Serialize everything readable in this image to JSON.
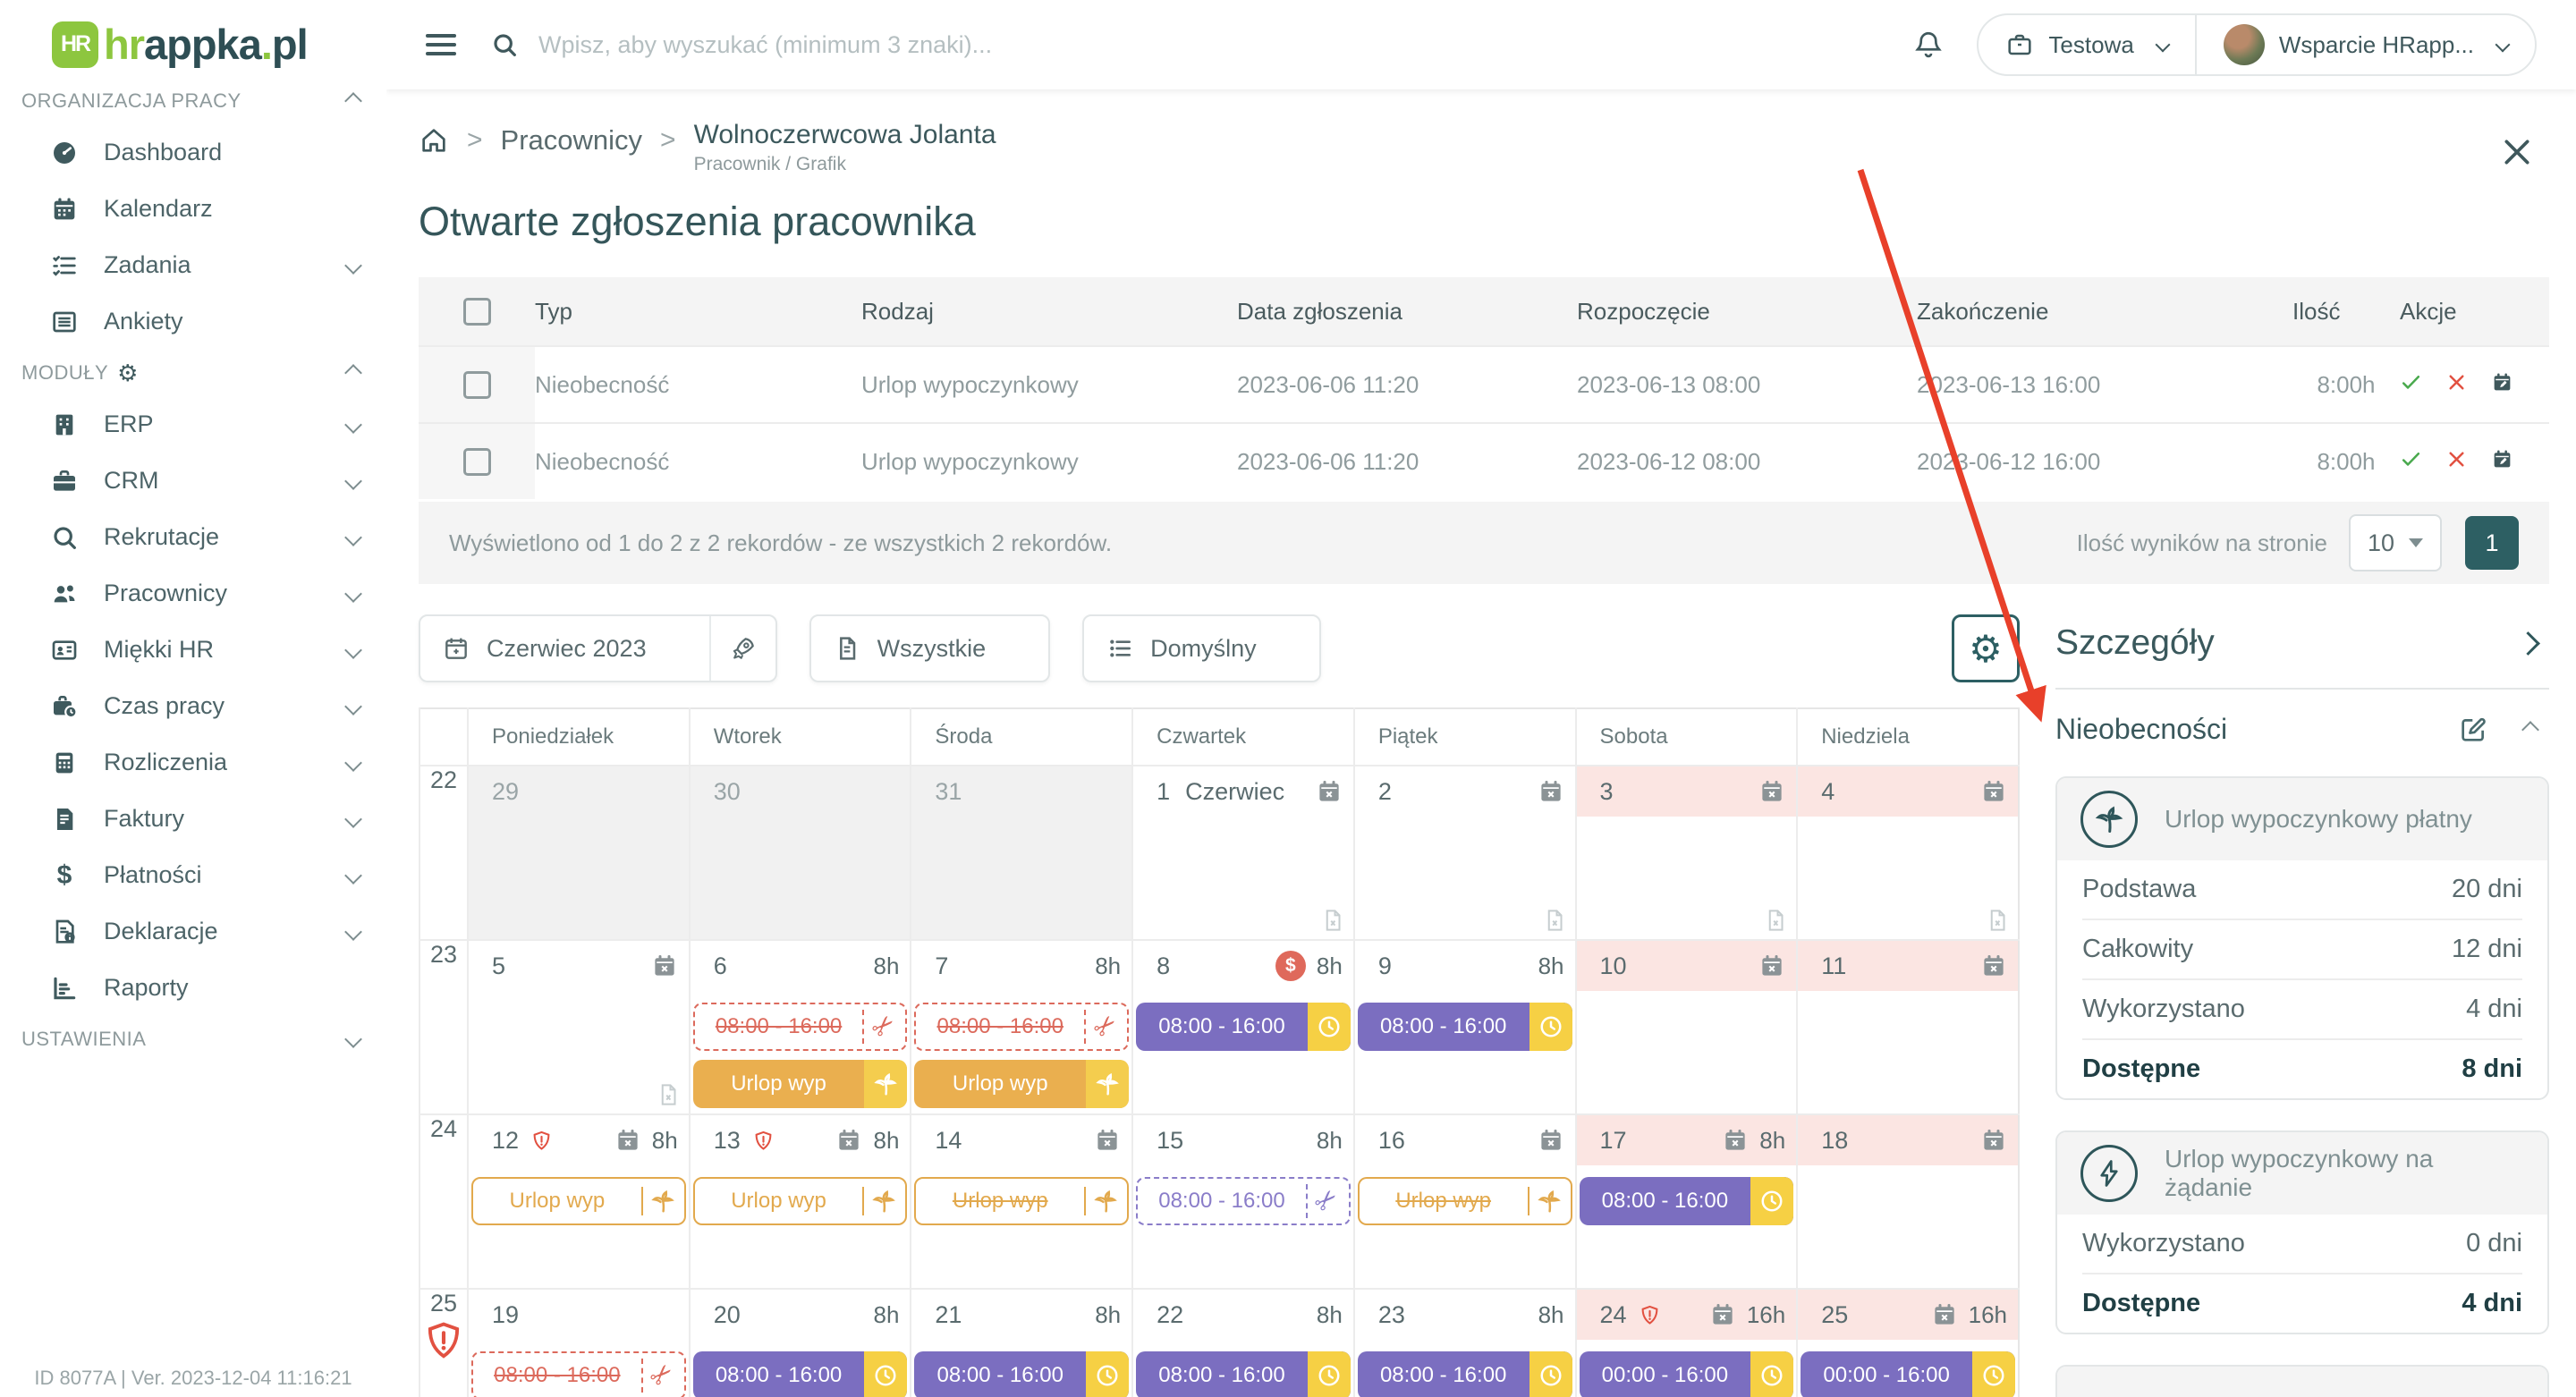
{
  "brand": {
    "badge": "HR",
    "hr": "hr",
    "appka": "appka",
    "dot": ".",
    "pl": "pl"
  },
  "topbar": {
    "search_placeholder": "Wpisz, aby wyszukać (minimum 3 znaki)...",
    "company": "Testowa",
    "user": "Wsparcie HRapp..."
  },
  "sidebar": {
    "sections": [
      {
        "label": "ORGANIZACJA PRACY",
        "chevron": "up",
        "gear": false,
        "items": [
          {
            "icon": "gauge",
            "label": "Dashboard",
            "chevron": false
          },
          {
            "icon": "calendar",
            "label": "Kalendarz",
            "chevron": false
          },
          {
            "icon": "tasks",
            "label": "Zadania",
            "chevron": true
          },
          {
            "icon": "survey",
            "label": "Ankiety",
            "chevron": false
          }
        ]
      },
      {
        "label": "MODUŁY",
        "chevron": "up",
        "gear": true,
        "items": [
          {
            "icon": "building",
            "label": "ERP",
            "chevron": true
          },
          {
            "icon": "briefcase",
            "label": "CRM",
            "chevron": true
          },
          {
            "icon": "search",
            "label": "Rekrutacje",
            "chevron": true
          },
          {
            "icon": "users",
            "label": "Pracownicy",
            "chevron": true
          },
          {
            "icon": "idcard",
            "label": "Miękki HR",
            "chevron": true
          },
          {
            "icon": "briefcase-clock",
            "label": "Czas pracy",
            "chevron": true
          },
          {
            "icon": "calculator",
            "label": "Rozliczenia",
            "chevron": true
          },
          {
            "icon": "invoice",
            "label": "Faktury",
            "chevron": true
          },
          {
            "icon": "dollar",
            "label": "Płatności",
            "chevron": true
          },
          {
            "icon": "file-info",
            "label": "Deklaracje",
            "chevron": true
          },
          {
            "icon": "chart",
            "label": "Raporty",
            "chevron": false
          }
        ]
      },
      {
        "label": "USTAWIENIA",
        "chevron": "down",
        "gear": false,
        "items": []
      }
    ],
    "footer": "ID 8077A | Ver. 2023-12-04 11:16:21"
  },
  "breadcrumb": {
    "section": "Pracownicy",
    "employee": "Wolnoczerwcowa Jolanta",
    "employee_sub": "Pracownik / Grafik"
  },
  "page": {
    "title": "Otwarte zgłoszenia pracownika"
  },
  "table": {
    "headers": [
      "Typ",
      "Rodzaj",
      "Data zgłoszenia",
      "Rozpoczęcie",
      "Zakończenie",
      "Ilość",
      "Akcje"
    ],
    "rows": [
      {
        "typ": "Nieobecność",
        "rodzaj": "Urlop wypoczynkowy",
        "data": "2023-06-06 11:20",
        "start": "2023-06-13 08:00",
        "end": "2023-06-13 16:00",
        "qty": "8:00h",
        "actions": [
          "approve",
          "reject",
          "calendar-edit"
        ]
      },
      {
        "typ": "Nieobecność",
        "rodzaj": "Urlop wypoczynkowy",
        "data": "2023-06-06 11:20",
        "start": "2023-06-12 08:00",
        "end": "2023-06-12 16:00",
        "qty": "8:00h",
        "actions": [
          "approve",
          "reject",
          "calendar-edit"
        ]
      }
    ]
  },
  "pagination": {
    "summary": "Wyświetlono od 1 do 2 z 2 rekordów - ze wszystkich 2 rekordów.",
    "per_page_label": "Ilość wyników na stronie",
    "per_page": "10",
    "page": "1"
  },
  "filters": {
    "month": "Czerwiec 2023",
    "type_filter": "Wszystkie",
    "view": "Domyślny"
  },
  "calendar": {
    "day_names": [
      "Poniedziałek",
      "Wtorek",
      "Środa",
      "Czwartek",
      "Piątek",
      "Sobota",
      "Niedziela"
    ],
    "weeks": [
      {
        "num": "22",
        "shield": false,
        "days": [
          {
            "num": "29",
            "muted": true
          },
          {
            "num": "30",
            "muted": true
          },
          {
            "num": "31",
            "muted": true
          },
          {
            "num": "1",
            "label": "Czerwiec",
            "cal": true,
            "doc": true
          },
          {
            "num": "2",
            "cal": true,
            "doc": true
          },
          {
            "num": "3",
            "pink": true,
            "cal": true,
            "doc": true
          },
          {
            "num": "4",
            "pink": true,
            "cal": true,
            "doc": true
          }
        ]
      },
      {
        "num": "23",
        "shield": false,
        "days": [
          {
            "num": "5",
            "cal": true,
            "doc": true
          },
          {
            "num": "6",
            "hours": "8h",
            "chips": [
              {
                "text": "08:00 - 16:00",
                "type": "red-dashed",
                "strike": true
              },
              {
                "text": "Urlop wyp",
                "type": "orange-filled"
              }
            ]
          },
          {
            "num": "7",
            "hours": "8h",
            "chips": [
              {
                "text": "08:00 - 16:00",
                "type": "red-dashed",
                "strike": true
              },
              {
                "text": "Urlop wyp",
                "type": "orange-filled"
              }
            ]
          },
          {
            "num": "8",
            "dollar": true,
            "hours": "8h",
            "chips": [
              {
                "text": "08:00 - 16:00",
                "type": "purple"
              }
            ]
          },
          {
            "num": "9",
            "hours": "8h",
            "chips": [
              {
                "text": "08:00 - 16:00",
                "type": "purple"
              }
            ]
          },
          {
            "num": "10",
            "pink": true,
            "cal": true
          },
          {
            "num": "11",
            "pink": true,
            "cal": true
          }
        ]
      },
      {
        "num": "24",
        "shield": false,
        "days": [
          {
            "num": "12",
            "shield": true,
            "cal": true,
            "hours": "8h",
            "chips": [
              {
                "text": "Urlop wyp",
                "type": "orange-outline"
              }
            ]
          },
          {
            "num": "13",
            "shield": true,
            "cal": true,
            "hours": "8h",
            "chips": [
              {
                "text": "Urlop wyp",
                "type": "orange-outline"
              }
            ]
          },
          {
            "num": "14",
            "cal": true,
            "chips": [
              {
                "text": "Urlop wyp",
                "type": "orange-outline",
                "strike": true
              }
            ]
          },
          {
            "num": "15",
            "hours": "8h",
            "chips": [
              {
                "text": "08:00 - 16:00",
                "type": "purple-dashed"
              }
            ]
          },
          {
            "num": "16",
            "cal": true,
            "chips": [
              {
                "text": "Urlop wyp",
                "type": "orange-outline",
                "strike": true
              }
            ]
          },
          {
            "num": "17",
            "pink": true,
            "cal": true,
            "hours": "8h",
            "chips": [
              {
                "text": "08:00 - 16:00",
                "type": "purple"
              }
            ]
          },
          {
            "num": "18",
            "pink": true,
            "cal": true
          }
        ]
      },
      {
        "num": "25",
        "shield": true,
        "days": [
          {
            "num": "19",
            "chips": [
              {
                "text": "08:00 - 16:00",
                "type": "red-dashed",
                "strike": true
              }
            ]
          },
          {
            "num": "20",
            "hours": "8h",
            "chips": [
              {
                "text": "08:00 - 16:00",
                "type": "purple"
              }
            ]
          },
          {
            "num": "21",
            "hours": "8h",
            "chips": [
              {
                "text": "08:00 - 16:00",
                "type": "purple"
              }
            ]
          },
          {
            "num": "22",
            "hours": "8h",
            "chips": [
              {
                "text": "08:00 - 16:00",
                "type": "purple"
              }
            ]
          },
          {
            "num": "23",
            "hours": "8h",
            "chips": [
              {
                "text": "08:00 - 16:00",
                "type": "purple"
              }
            ]
          },
          {
            "num": "24",
            "pink": true,
            "shield": true,
            "cal": true,
            "hours": "16h",
            "chips": [
              {
                "text": "00:00 - 16:00",
                "type": "purple"
              }
            ]
          },
          {
            "num": "25",
            "pink": true,
            "cal": true,
            "hours": "16h",
            "chips": [
              {
                "text": "00:00 - 16:00",
                "type": "purple"
              }
            ]
          }
        ]
      }
    ]
  },
  "panel": {
    "details_title": "Szczegóły",
    "section_title": "Nieobecności",
    "cards": [
      {
        "icon": "palm",
        "title": "Urlop wypoczynkowy płatny",
        "rows": [
          {
            "label": "Podstawa",
            "value": "20 dni"
          },
          {
            "label": "Całkowity",
            "value": "12 dni"
          },
          {
            "label": "Wykorzystano",
            "value": "4 dni"
          },
          {
            "label": "Dostępne",
            "value": "8 dni",
            "bold": true
          }
        ]
      },
      {
        "icon": "bolt",
        "title": "Urlop wypoczynkowy na żądanie",
        "rows": [
          {
            "label": "Wykorzystano",
            "value": "0 dni"
          },
          {
            "label": "Dostępne",
            "value": "4 dni",
            "bold": true
          }
        ]
      },
      {
        "icon": "",
        "title": "",
        "rows": [],
        "stub": true
      }
    ]
  },
  "colors": {
    "brand_green": "#8dc63f",
    "brand_teal": "#2e4e54",
    "accent_teal": "#2d5f63",
    "shift_purple": "#7b6ec0",
    "shift_yellow": "#f6d044",
    "leave_orange": "#eaaf4f",
    "cancel_red": "#dc6a5c",
    "weekend_pink": "#fbe5e2",
    "ok_green": "#49a94d",
    "error_red": "#e25141",
    "annotation_red": "#e8402a"
  }
}
